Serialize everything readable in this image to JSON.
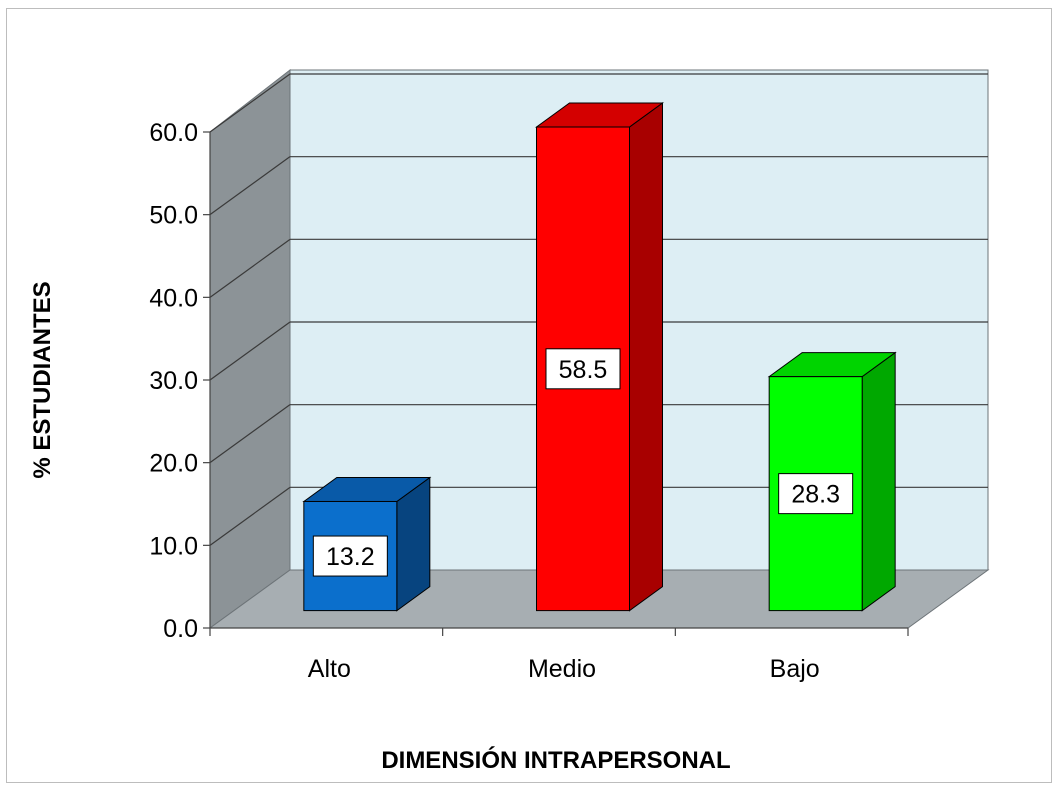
{
  "chart_data": {
    "type": "bar",
    "title": "",
    "xlabel": "DIMENSIÓN INTRAPERSONAL",
    "ylabel": "% ESTUDIANTES",
    "categories": [
      "Alto",
      "Medio",
      "Bajo"
    ],
    "values": [
      13.2,
      58.5,
      28.3
    ],
    "data_labels": [
      "13.2",
      "58.5",
      "28.3"
    ],
    "yticks": [
      "0.0",
      "10.0",
      "20.0",
      "30.0",
      "40.0",
      "50.0",
      "60.0"
    ],
    "ylim": [
      0,
      60
    ],
    "grid": true,
    "legend": "none",
    "colors": {
      "Alto": {
        "front": "#0b6fcc",
        "side": "#07447f",
        "top": "#095aa8"
      },
      "Medio": {
        "front": "#ff0000",
        "side": "#a80000",
        "top": "#d40000"
      },
      "Bajo": {
        "front": "#00ff00",
        "side": "#00a800",
        "top": "#00d400"
      },
      "back_wall": "#ddeef4",
      "side_wall": "#8c9397",
      "floor": "#a7aeb2",
      "gridline": "#3a3a3a"
    }
  }
}
